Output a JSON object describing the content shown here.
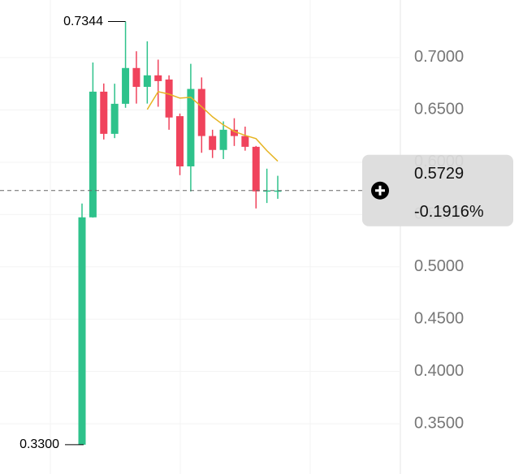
{
  "chart_data": {
    "type": "candlestick",
    "categories": [
      null,
      null,
      null,
      null,
      null,
      null,
      null,
      null,
      null,
      null,
      null,
      null,
      null,
      null,
      null,
      null,
      null,
      null,
      null
    ],
    "open": [
      0.33,
      0.5473,
      0.6674,
      0.6271,
      0.6558,
      0.69,
      0.672,
      0.683,
      0.679,
      0.644,
      0.596,
      0.67,
      0.625,
      0.6117,
      0.631,
      0.625,
      0.6147,
      0.5721,
      0.5721
    ],
    "high": [
      0.5605,
      0.6953,
      0.6752,
      0.675,
      0.7344,
      0.706,
      0.7155,
      0.698,
      0.683,
      0.6465,
      0.694,
      0.681,
      0.631,
      0.639,
      0.642,
      0.634,
      0.6155,
      0.5938,
      0.587
    ],
    "low": [
      0.33,
      0.547,
      0.6217,
      0.623,
      0.652,
      0.656,
      0.656,
      0.653,
      0.631,
      0.5876,
      0.572,
      0.609,
      0.604,
      0.603,
      0.6155,
      0.611,
      0.5558,
      0.561,
      0.565
    ],
    "close": [
      0.5473,
      0.6674,
      0.6271,
      0.6558,
      0.69,
      0.672,
      0.683,
      0.6775,
      0.6427,
      0.596,
      0.67,
      0.625,
      0.6117,
      0.631,
      0.625,
      0.6147,
      0.5721,
      0.573,
      0.5729
    ],
    "up_color": "#2ec28b",
    "down_color": "#f0435c",
    "moving_average": {
      "color": "#e6b422",
      "values": [
        null,
        null,
        null,
        null,
        null,
        null,
        0.6504,
        0.6674,
        0.665,
        0.6612,
        0.662,
        0.653,
        0.6434,
        0.6356,
        0.6294,
        0.6256,
        0.6225,
        0.611,
        0.601
      ]
    },
    "ylim": [
      0.302,
      0.755
    ],
    "yticks": [
      {
        "value": 0.35,
        "label": "0.3500"
      },
      {
        "value": 0.4,
        "label": "0.4000"
      },
      {
        "value": 0.45,
        "label": "0.4500"
      },
      {
        "value": 0.5,
        "label": "0.5000"
      },
      {
        "value": 0.55,
        "label": "0.5500"
      },
      {
        "value": 0.6,
        "label": "0.6000"
      },
      {
        "value": 0.65,
        "label": "0.6500"
      },
      {
        "value": 0.7,
        "label": "0.7000"
      }
    ],
    "grid": true,
    "high_label": 0.7344,
    "low_label": {
      "value": 0.33,
      "label": "0.3300"
    },
    "current_price": 0.5729,
    "change": {
      "value": -0.1916,
      "label": "-0.1916%"
    }
  }
}
